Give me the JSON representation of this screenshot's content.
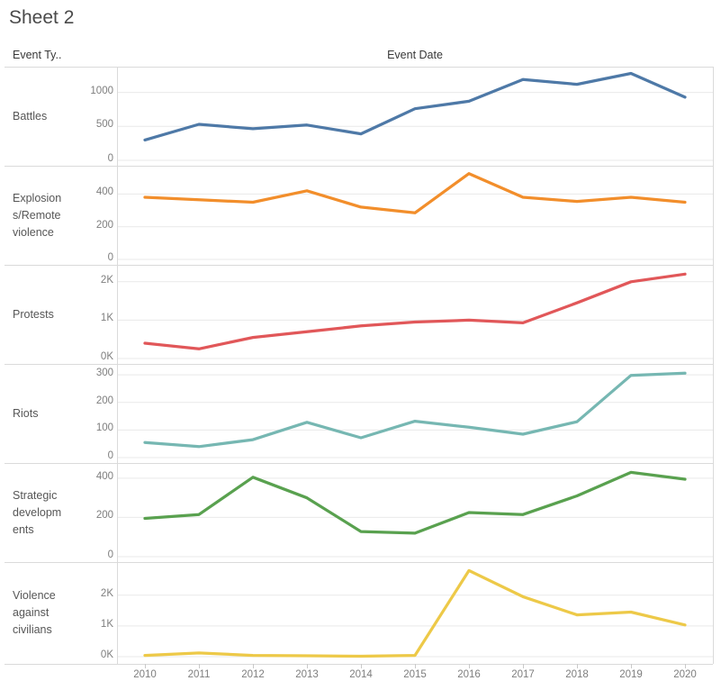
{
  "title": "Sheet 2",
  "headers": {
    "row_field": "Event Ty..",
    "column_field": "Event Date"
  },
  "x_axis": {
    "years": [
      "2010",
      "2011",
      "2012",
      "2013",
      "2014",
      "2015",
      "2016",
      "2017",
      "2018",
      "2019",
      "2020"
    ]
  },
  "chart_data": {
    "type": "line",
    "title": "Sheet 2",
    "xlabel": "Event Date",
    "row_field_label": "Event Ty..",
    "x": [
      2010,
      2011,
      2012,
      2013,
      2014,
      2015,
      2016,
      2017,
      2018,
      2019,
      2020
    ],
    "grid": "horizontal-light",
    "rows": [
      {
        "label": "Battles",
        "label_lines": [
          "Battles"
        ],
        "color": "#4E79A7",
        "axis_max": 1300,
        "ticks": [
          {
            "v": 0,
            "label": "0"
          },
          {
            "v": 500,
            "label": "500"
          },
          {
            "v": 1000,
            "label": "1000"
          }
        ],
        "values": [
          300,
          530,
          465,
          520,
          390,
          760,
          870,
          1190,
          1120,
          1280,
          930
        ]
      },
      {
        "label": "Explosions/Remote violence",
        "label_lines": [
          "Explosion",
          "s/Remote",
          "violence"
        ],
        "color": "#F28E2B",
        "axis_max": 540,
        "ticks": [
          {
            "v": 0,
            "label": "0"
          },
          {
            "v": 200,
            "label": "200"
          },
          {
            "v": 400,
            "label": "400"
          }
        ],
        "values": [
          380,
          365,
          350,
          420,
          320,
          285,
          525,
          380,
          355,
          380,
          350
        ]
      },
      {
        "label": "Protests",
        "label_lines": [
          "Protests"
        ],
        "color": "#E15759",
        "axis_max": 2300,
        "ticks": [
          {
            "v": 0,
            "label": "0K"
          },
          {
            "v": 1000,
            "label": "1K"
          },
          {
            "v": 2000,
            "label": "2K"
          }
        ],
        "values": [
          400,
          250,
          550,
          700,
          850,
          950,
          1000,
          930,
          1450,
          2000,
          2200
        ]
      },
      {
        "label": "Riots",
        "label_lines": [
          "Riots"
        ],
        "color": "#76B7B2",
        "axis_max": 320,
        "ticks": [
          {
            "v": 0,
            "label": "0"
          },
          {
            "v": 100,
            "label": "100"
          },
          {
            "v": 200,
            "label": "200"
          },
          {
            "v": 300,
            "label": "300"
          }
        ],
        "values": [
          55,
          40,
          65,
          128,
          72,
          132,
          110,
          85,
          130,
          298,
          306
        ]
      },
      {
        "label": "Strategic developments",
        "label_lines": [
          "Strategic",
          "developm",
          "ents"
        ],
        "color": "#59A14F",
        "axis_max": 450,
        "ticks": [
          {
            "v": 0,
            "label": "0"
          },
          {
            "v": 200,
            "label": "200"
          },
          {
            "v": 400,
            "label": "400"
          }
        ],
        "values": [
          195,
          215,
          405,
          300,
          128,
          120,
          225,
          215,
          310,
          430,
          395
        ]
      },
      {
        "label": "Violence against civilians",
        "label_lines": [
          "Violence",
          "against",
          "civilians"
        ],
        "color": "#EDC948",
        "axis_max": 2900,
        "ticks": [
          {
            "v": 0,
            "label": "0K"
          },
          {
            "v": 1000,
            "label": "1K"
          },
          {
            "v": 2000,
            "label": "2K"
          }
        ],
        "values": [
          40,
          120,
          40,
          30,
          15,
          40,
          2800,
          1950,
          1360,
          1450,
          1030
        ]
      }
    ]
  }
}
